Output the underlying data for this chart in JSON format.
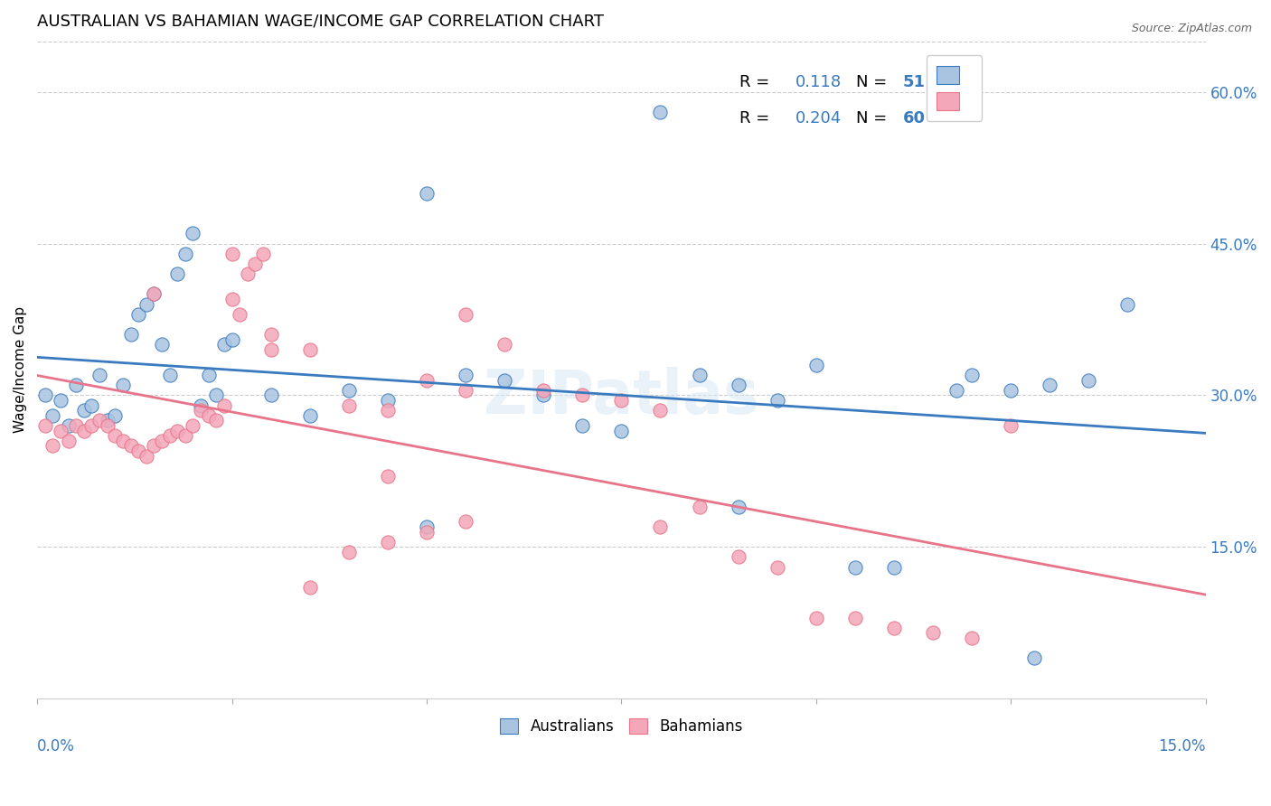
{
  "title": "AUSTRALIAN VS BAHAMIAN WAGE/INCOME GAP CORRELATION CHART",
  "source": "Source: ZipAtlas.com",
  "ylabel": "Wage/Income Gap",
  "right_yticks": [
    0.15,
    0.3,
    0.45,
    0.6
  ],
  "right_ytick_labels": [
    "15.0%",
    "30.0%",
    "45.0%",
    "60.0%"
  ],
  "legend_label_aus": "Australians",
  "legend_label_bah": "Bahamians",
  "R_aus": 0.118,
  "N_aus": 51,
  "R_bah": 0.204,
  "N_bah": 60,
  "aus_color": "#a8c4e0",
  "bah_color": "#f4a7b9",
  "aus_line_color": "#3a7abf",
  "bah_line_color": "#e8748a",
  "background_color": "#ffffff",
  "grid_color": "#cccccc",
  "aus_points_x": [
    0.001,
    0.002,
    0.003,
    0.004,
    0.005,
    0.006,
    0.007,
    0.008,
    0.009,
    0.01,
    0.011,
    0.012,
    0.013,
    0.014,
    0.015,
    0.016,
    0.017,
    0.018,
    0.019,
    0.02,
    0.021,
    0.022,
    0.023,
    0.024,
    0.025,
    0.03,
    0.035,
    0.04,
    0.045,
    0.05,
    0.055,
    0.06,
    0.065,
    0.07,
    0.075,
    0.08,
    0.085,
    0.09,
    0.095,
    0.1,
    0.105,
    0.11,
    0.12,
    0.125,
    0.13,
    0.135,
    0.14,
    0.118,
    0.128,
    0.09,
    0.05
  ],
  "aus_points_y": [
    0.3,
    0.28,
    0.295,
    0.27,
    0.31,
    0.285,
    0.29,
    0.32,
    0.275,
    0.28,
    0.31,
    0.36,
    0.38,
    0.39,
    0.4,
    0.35,
    0.32,
    0.42,
    0.44,
    0.46,
    0.29,
    0.32,
    0.3,
    0.35,
    0.355,
    0.3,
    0.28,
    0.305,
    0.295,
    0.17,
    0.32,
    0.315,
    0.3,
    0.27,
    0.265,
    0.58,
    0.32,
    0.31,
    0.295,
    0.33,
    0.13,
    0.13,
    0.32,
    0.305,
    0.31,
    0.315,
    0.39,
    0.305,
    0.04,
    0.19,
    0.5
  ],
  "bah_points_x": [
    0.001,
    0.002,
    0.003,
    0.004,
    0.005,
    0.006,
    0.007,
    0.008,
    0.009,
    0.01,
    0.011,
    0.012,
    0.013,
    0.014,
    0.015,
    0.016,
    0.017,
    0.018,
    0.019,
    0.02,
    0.021,
    0.022,
    0.023,
    0.024,
    0.025,
    0.026,
    0.027,
    0.028,
    0.029,
    0.03,
    0.035,
    0.04,
    0.045,
    0.05,
    0.055,
    0.06,
    0.065,
    0.07,
    0.075,
    0.08,
    0.085,
    0.09,
    0.095,
    0.1,
    0.105,
    0.11,
    0.115,
    0.12,
    0.125,
    0.055,
    0.035,
    0.04,
    0.045,
    0.05,
    0.055,
    0.08,
    0.045,
    0.03,
    0.025,
    0.015
  ],
  "bah_points_y": [
    0.27,
    0.25,
    0.265,
    0.255,
    0.27,
    0.265,
    0.27,
    0.275,
    0.27,
    0.26,
    0.255,
    0.25,
    0.245,
    0.24,
    0.25,
    0.255,
    0.26,
    0.265,
    0.26,
    0.27,
    0.285,
    0.28,
    0.275,
    0.29,
    0.395,
    0.38,
    0.42,
    0.43,
    0.44,
    0.36,
    0.345,
    0.29,
    0.285,
    0.315,
    0.305,
    0.35,
    0.305,
    0.3,
    0.295,
    0.17,
    0.19,
    0.14,
    0.13,
    0.08,
    0.08,
    0.07,
    0.065,
    0.06,
    0.27,
    0.38,
    0.11,
    0.145,
    0.155,
    0.165,
    0.175,
    0.285,
    0.22,
    0.345,
    0.44,
    0.4
  ]
}
